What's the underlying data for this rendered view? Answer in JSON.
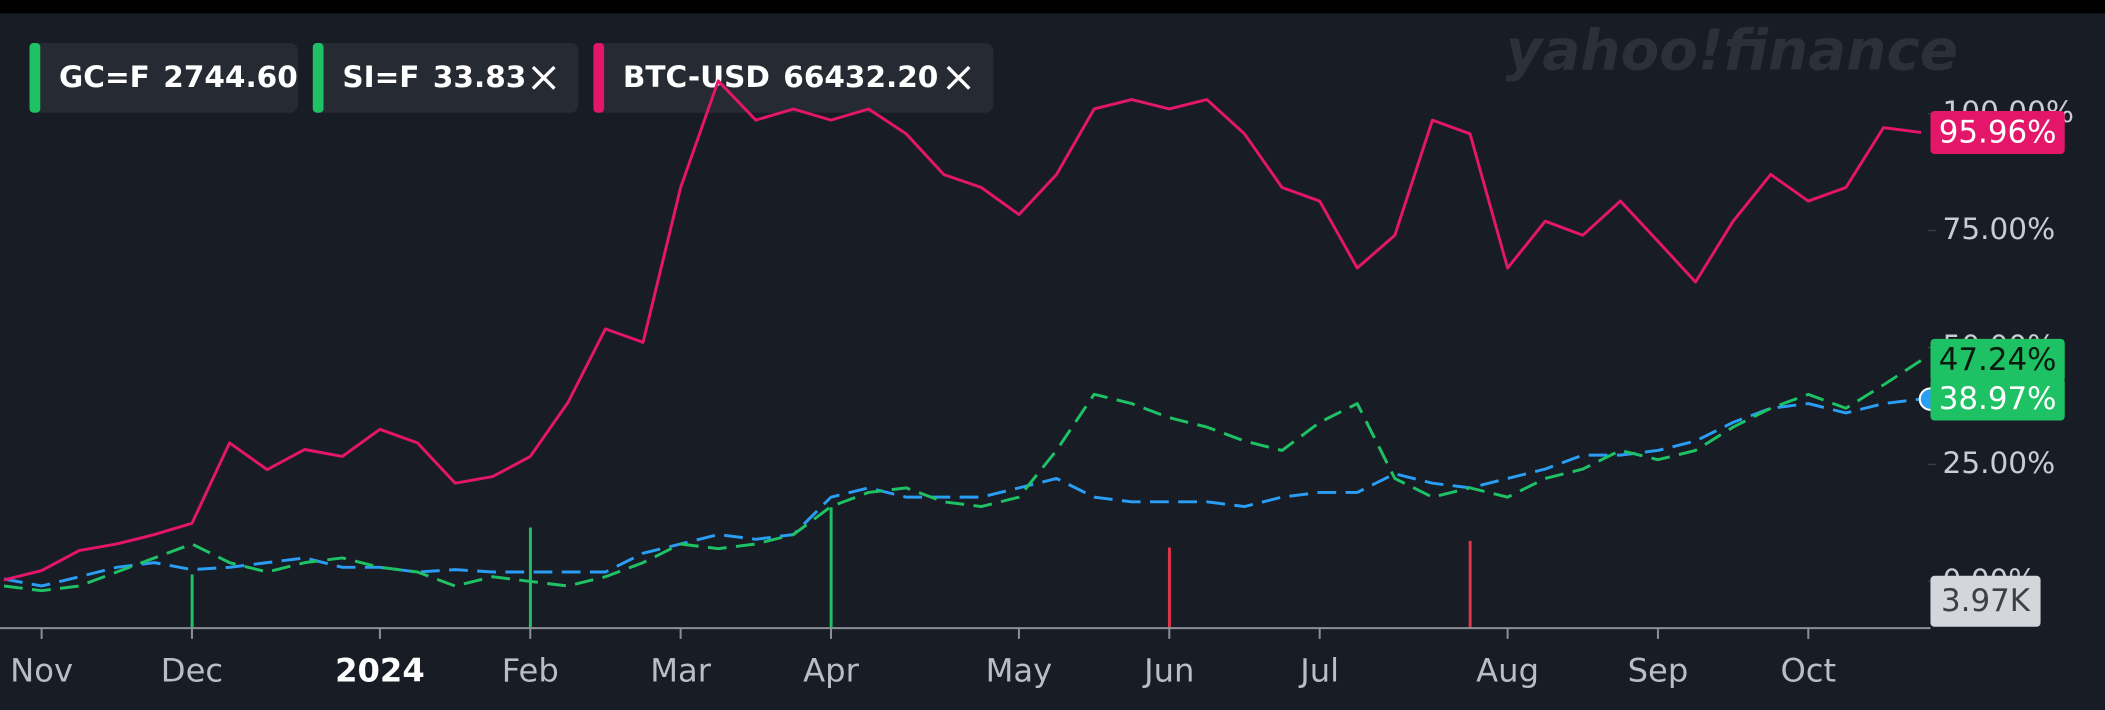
{
  "chart_data": {
    "type": "line",
    "watermark": "yahoo!finance",
    "categories": [
      null,
      "Nov",
      null,
      null,
      null,
      "Dec",
      null,
      null,
      null,
      null,
      "2024",
      null,
      null,
      null,
      "Feb",
      null,
      null,
      null,
      "Mar",
      null,
      null,
      null,
      "Apr",
      null,
      null,
      null,
      null,
      "May",
      null,
      null,
      null,
      "Jun",
      null,
      null,
      null,
      "Jul",
      null,
      null,
      null,
      null,
      "Aug",
      null,
      null,
      null,
      "Sep",
      null,
      null,
      null,
      "Oct",
      null,
      null,
      null
    ],
    "series": [
      {
        "name": "GC=F",
        "price": "2744.60",
        "color": "#2a9df4",
        "legend_color": "#1ec265",
        "dashed": true,
        "values": [
          0.5,
          -1,
          1,
          3,
          4,
          2.5,
          3,
          4,
          5,
          3,
          3,
          2,
          2.5,
          2,
          2,
          2,
          2,
          6,
          8,
          10,
          9,
          10,
          18,
          20,
          18,
          18,
          18,
          20,
          22,
          18,
          17,
          17,
          17,
          16,
          18,
          19,
          19,
          23,
          21,
          20,
          22,
          24,
          27,
          27,
          28,
          30,
          34,
          37,
          38,
          36,
          38,
          38.97
        ],
        "value_labels": [
          null,
          null,
          null,
          null,
          null,
          null,
          null,
          null,
          null,
          null,
          null,
          null,
          null,
          null,
          null,
          null,
          null,
          null,
          null,
          null,
          null,
          null,
          null,
          null,
          null,
          null,
          null,
          null,
          null,
          null,
          null,
          null,
          null,
          null,
          null,
          null,
          null,
          null,
          null,
          null,
          null,
          null,
          null,
          null,
          null,
          null,
          null,
          null,
          null,
          null,
          null,
          "38.97%"
        ]
      },
      {
        "name": "SI=F",
        "price": "33.83",
        "color": "#1ec265",
        "legend_color": "#1ec265",
        "dashed": true,
        "values": [
          -1,
          -2,
          -1,
          2,
          5,
          8,
          4,
          2,
          4,
          5,
          3,
          2,
          -1,
          1,
          0,
          -1,
          1,
          4,
          8,
          7,
          8,
          10,
          16,
          19,
          20,
          17,
          16,
          18,
          28,
          40,
          38,
          35,
          33,
          30,
          28,
          34,
          38,
          22,
          18,
          20,
          18,
          22,
          24,
          28,
          26,
          28,
          33,
          37,
          40,
          37,
          42,
          47.24
        ],
        "value_labels": [
          null,
          null,
          null,
          null,
          null,
          null,
          null,
          null,
          null,
          null,
          null,
          null,
          null,
          null,
          null,
          null,
          null,
          null,
          null,
          null,
          null,
          null,
          null,
          null,
          null,
          null,
          null,
          null,
          null,
          null,
          null,
          null,
          null,
          null,
          null,
          null,
          null,
          null,
          null,
          null,
          null,
          null,
          null,
          null,
          null,
          null,
          null,
          null,
          null,
          null,
          null,
          "47.24%"
        ]
      },
      {
        "name": "BTC-USD",
        "price": "66432.20",
        "color": "#e4166a",
        "legend_color": "#e4166a",
        "dashed": false,
        "values": [
          0.3,
          2.3,
          6.6,
          8,
          10,
          12.4,
          29.6,
          23.9,
          28.2,
          26.7,
          32.5,
          29.6,
          21,
          22.4,
          26.7,
          38.2,
          54,
          51.1,
          84.2,
          107,
          98.6,
          101,
          98.6,
          101,
          95.7,
          87,
          84.2,
          78.4,
          87,
          101,
          103,
          101,
          103,
          95.7,
          84.2,
          81.3,
          67,
          74,
          98.6,
          95.7,
          67,
          77,
          74,
          81.3,
          72.7,
          64,
          77,
          87,
          81.3,
          84.2,
          97,
          95.96
        ],
        "value_labels": [
          null,
          null,
          null,
          null,
          null,
          null,
          null,
          null,
          null,
          null,
          null,
          null,
          null,
          null,
          null,
          null,
          null,
          null,
          null,
          null,
          null,
          null,
          null,
          null,
          null,
          null,
          null,
          null,
          null,
          null,
          null,
          null,
          null,
          null,
          null,
          null,
          null,
          null,
          null,
          null,
          null,
          null,
          null,
          null,
          null,
          null,
          null,
          null,
          null,
          null,
          null,
          "95.96%"
        ]
      }
    ],
    "ylim": [
      -10,
      122
    ],
    "yticks": [
      {
        "value": 0,
        "label": "0.00%"
      },
      {
        "value": 25,
        "label": "25.00%"
      },
      {
        "value": 50,
        "label": "50.00%"
      },
      {
        "value": 75,
        "label": "75.00%"
      },
      {
        "value": 100,
        "label": "100.00%"
      }
    ],
    "volume": {
      "label": "3.97K",
      "ylim": [
        0,
        4
      ],
      "values": [
        null,
        null,
        null,
        null,
        null,
        0.8,
        null,
        null,
        null,
        null,
        null,
        null,
        null,
        null,
        1.5,
        null,
        null,
        null,
        null,
        null,
        null,
        null,
        1.8,
        null,
        null,
        null,
        null,
        null,
        null,
        null,
        null,
        1.2,
        null,
        null,
        null,
        null,
        null,
        null,
        null,
        1.3,
        null,
        null,
        null,
        null,
        null,
        null,
        null,
        null,
        null,
        null,
        null,
        null
      ],
      "colors": [
        null,
        null,
        null,
        null,
        null,
        "#1ec265",
        null,
        null,
        null,
        null,
        null,
        null,
        null,
        null,
        "#1ec265",
        null,
        null,
        null,
        null,
        null,
        null,
        null,
        "#1ec265",
        null,
        null,
        null,
        null,
        null,
        null,
        null,
        null,
        "#e0344a",
        null,
        null,
        null,
        null,
        null,
        null,
        null,
        "#e0344a",
        null,
        null,
        null,
        null,
        null,
        null,
        null,
        null,
        null,
        null,
        null,
        null
      ]
    }
  }
}
